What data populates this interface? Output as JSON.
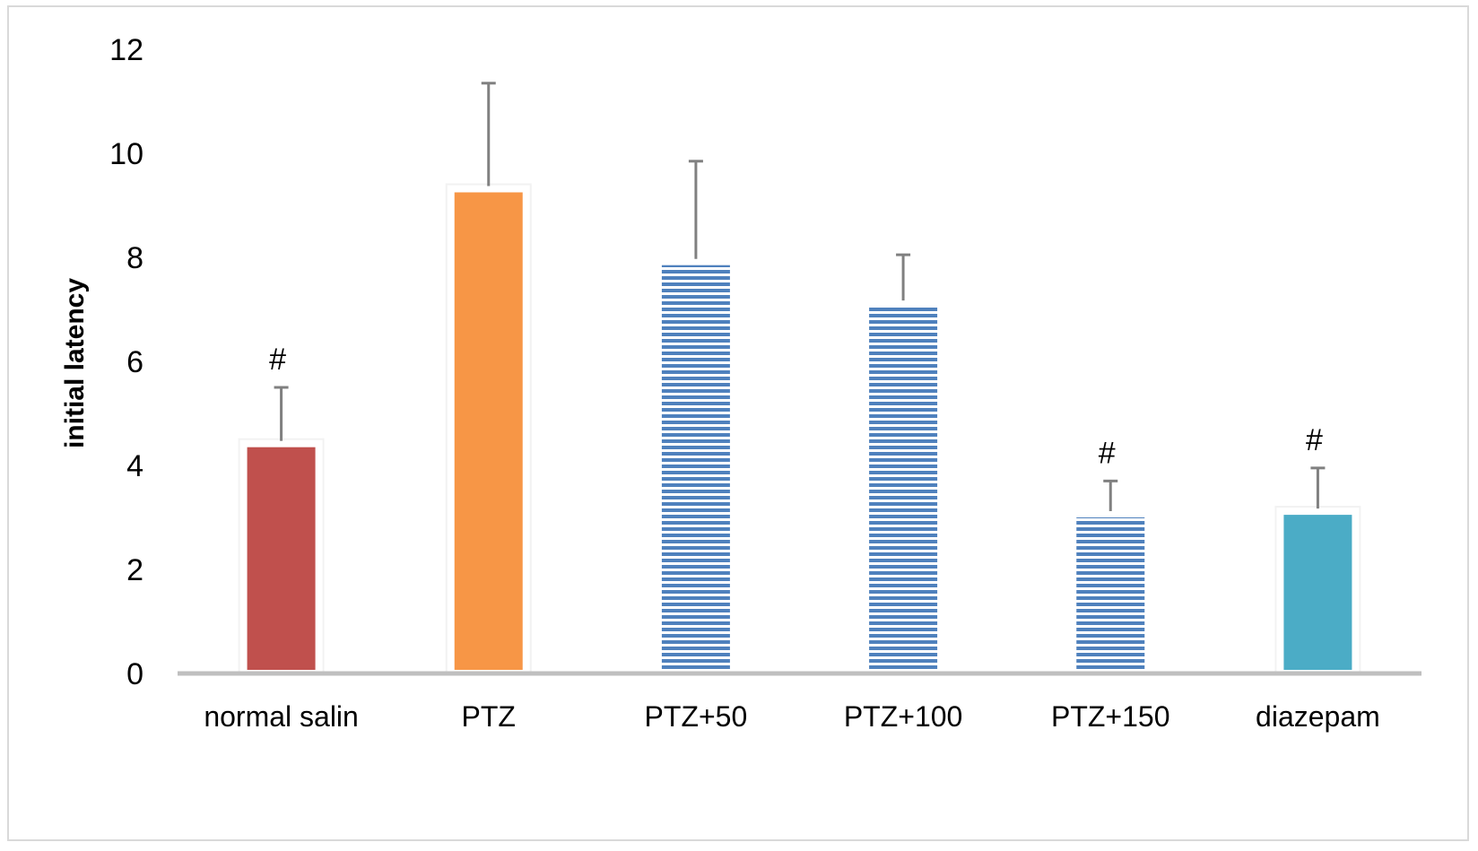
{
  "chart_data": {
    "type": "bar",
    "title": "",
    "xlabel": "",
    "ylabel": "initial latency",
    "ylim": [
      0,
      12
    ],
    "yticks": [
      0,
      2,
      4,
      6,
      8,
      10,
      12
    ],
    "ytick_labels": [
      "0",
      "2",
      "4",
      "6",
      "8",
      "10",
      "12"
    ],
    "grid": false,
    "legend": "none",
    "categories": [
      "normal salin",
      "PTZ",
      "PTZ+50",
      "PTZ+100",
      "PTZ+150",
      "diazepam"
    ],
    "values": [
      4.35,
      9.25,
      7.85,
      7.05,
      3.0,
      3.05
    ],
    "error_upper": [
      1.15,
      2.1,
      2.0,
      1.0,
      0.7,
      0.9
    ],
    "annotations": [
      "#",
      "",
      "",
      "",
      "#",
      "#"
    ],
    "bar_fill": [
      "solid",
      "solid",
      "horizontal-stripes",
      "horizontal-stripes",
      "horizontal-stripes",
      "solid"
    ],
    "colors": [
      "#c0504d",
      "#f79646",
      "#4f81bd",
      "#4f81bd",
      "#4f81bd",
      "#4bacc6"
    ],
    "error_bar_color": "#808080",
    "axis_color": "#bfbfbf"
  }
}
